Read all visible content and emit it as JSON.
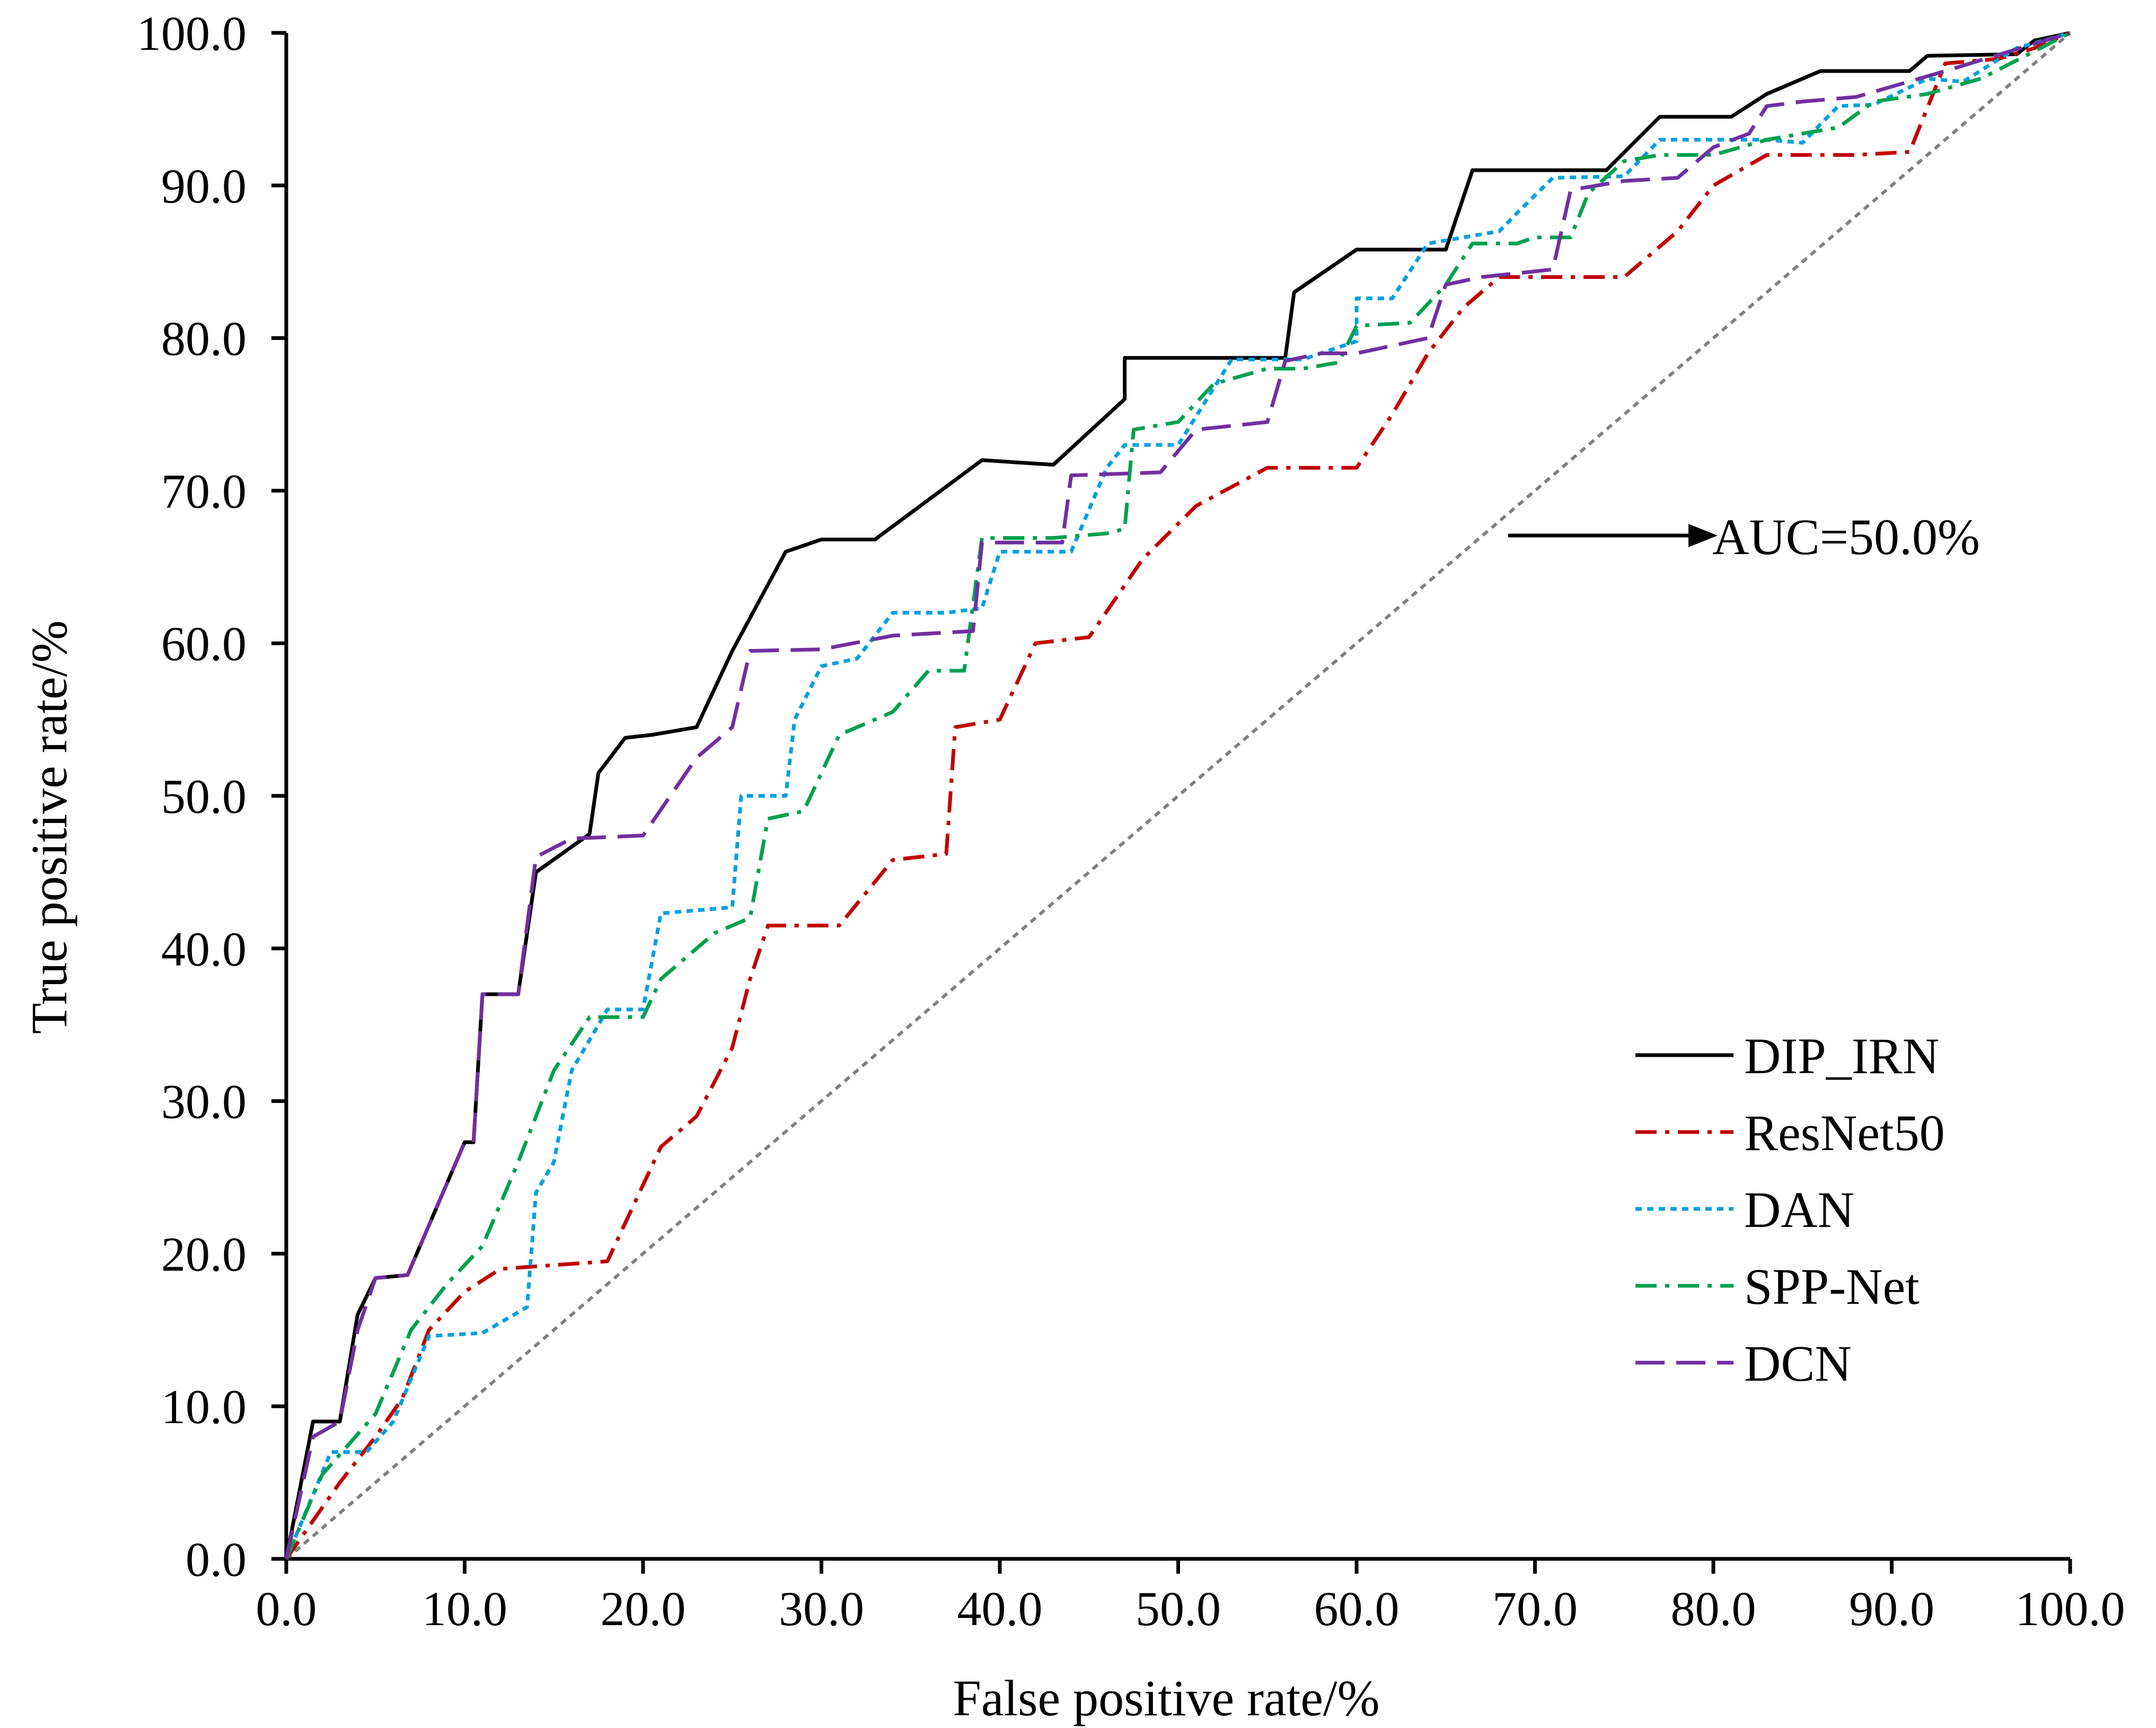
{
  "chart_data": {
    "type": "line",
    "title": "",
    "xlabel": "False positive rate/%",
    "ylabel": "True positive rate/%",
    "xlim": [
      0,
      100
    ],
    "ylim": [
      0,
      100
    ],
    "xticks": [
      "0.0",
      "10.0",
      "20.0",
      "30.0",
      "40.0",
      "50.0",
      "60.0",
      "70.0",
      "80.0",
      "90.0",
      "100.0"
    ],
    "yticks": [
      "0.0",
      "10.0",
      "20.0",
      "30.0",
      "40.0",
      "50.0",
      "60.0",
      "70.0",
      "80.0",
      "90.0",
      "100.0"
    ],
    "grid": false,
    "legend_position": "bottom-right",
    "annotation": "AUC=50.0%",
    "series": [
      {
        "name": "DIP_IRN",
        "color": "#000000",
        "dash": "solid",
        "points": [
          [
            0,
            0
          ],
          [
            1.5,
            9
          ],
          [
            3,
            9
          ],
          [
            4,
            16
          ],
          [
            5,
            18.4
          ],
          [
            6.8,
            18.6
          ],
          [
            10,
            27.3
          ],
          [
            10.5,
            27.3
          ],
          [
            11,
            37
          ],
          [
            13,
            37
          ],
          [
            14,
            45
          ],
          [
            17,
            47.5
          ],
          [
            17.5,
            51.5
          ],
          [
            19,
            53.8
          ],
          [
            20.5,
            54
          ],
          [
            23,
            54.5
          ],
          [
            25,
            59.5
          ],
          [
            28,
            66
          ],
          [
            30,
            66.8
          ],
          [
            33,
            66.8
          ],
          [
            39,
            72
          ],
          [
            43,
            71.7
          ],
          [
            47,
            76
          ],
          [
            47,
            78.7
          ],
          [
            56,
            78.7
          ],
          [
            56.5,
            83
          ],
          [
            60,
            85.8
          ],
          [
            64,
            85.8
          ],
          [
            65,
            85.8
          ],
          [
            66.5,
            91
          ],
          [
            74,
            91
          ],
          [
            77,
            94.5
          ],
          [
            81,
            94.5
          ],
          [
            83,
            96
          ],
          [
            86,
            97.5
          ],
          [
            91,
            97.5
          ],
          [
            92,
            98.5
          ],
          [
            97,
            98.6
          ],
          [
            98,
            99.5
          ],
          [
            100,
            100
          ]
        ]
      },
      {
        "name": "ResNet50",
        "color": "#c00000",
        "dash": "dashdot",
        "points": [
          [
            0,
            0
          ],
          [
            3,
            5
          ],
          [
            5,
            8
          ],
          [
            6.5,
            10.5
          ],
          [
            8,
            15
          ],
          [
            10,
            17.5
          ],
          [
            12,
            19
          ],
          [
            18,
            19.5
          ],
          [
            21,
            27
          ],
          [
            23,
            29
          ],
          [
            25,
            33.5
          ],
          [
            26,
            38
          ],
          [
            27,
            41.5
          ],
          [
            31,
            41.5
          ],
          [
            34,
            45.8
          ],
          [
            37,
            46.2
          ],
          [
            37.5,
            54.5
          ],
          [
            40,
            55
          ],
          [
            42,
            60
          ],
          [
            45,
            60.4
          ],
          [
            48,
            65.5
          ],
          [
            51,
            69
          ],
          [
            55,
            71.5
          ],
          [
            60,
            71.5
          ],
          [
            62,
            75
          ],
          [
            64,
            79
          ],
          [
            66,
            82
          ],
          [
            68,
            84
          ],
          [
            75,
            84
          ],
          [
            78,
            87
          ],
          [
            80,
            90
          ],
          [
            83,
            92
          ],
          [
            88,
            92
          ],
          [
            91,
            92.2
          ],
          [
            93,
            98
          ],
          [
            96,
            98.3
          ],
          [
            98,
            99
          ],
          [
            100,
            100
          ]
        ]
      },
      {
        "name": "DAN",
        "color": "#00a0e0",
        "dash": "dotted",
        "points": [
          [
            0,
            0
          ],
          [
            2.5,
            7
          ],
          [
            4.5,
            7
          ],
          [
            6,
            9
          ],
          [
            8,
            14.6
          ],
          [
            11,
            14.8
          ],
          [
            13.5,
            16.5
          ],
          [
            14,
            24
          ],
          [
            15,
            26
          ],
          [
            16,
            32
          ],
          [
            18,
            36
          ],
          [
            20,
            36
          ],
          [
            21,
            42.3
          ],
          [
            25,
            42.7
          ],
          [
            25.5,
            50
          ],
          [
            28,
            50
          ],
          [
            28.5,
            55
          ],
          [
            30,
            58.5
          ],
          [
            32,
            59
          ],
          [
            34,
            62
          ],
          [
            37,
            62
          ],
          [
            39,
            62.3
          ],
          [
            40,
            66
          ],
          [
            44,
            66
          ],
          [
            46,
            71.5
          ],
          [
            47,
            73
          ],
          [
            50,
            73
          ],
          [
            53,
            78.6
          ],
          [
            57,
            78.6
          ],
          [
            60,
            79.8
          ],
          [
            60,
            82.6
          ],
          [
            62,
            82.6
          ],
          [
            64,
            86.2
          ],
          [
            68,
            87
          ],
          [
            69,
            88.2
          ],
          [
            71,
            90.5
          ],
          [
            75,
            90.6
          ],
          [
            77,
            93
          ],
          [
            83,
            93
          ],
          [
            85,
            92.8
          ],
          [
            87,
            95.2
          ],
          [
            89,
            95.3
          ],
          [
            92,
            97
          ],
          [
            94,
            96.8
          ],
          [
            97,
            99
          ],
          [
            100,
            100
          ]
        ]
      },
      {
        "name": "SPP-Net",
        "color": "#00a050",
        "dash": "dashdot",
        "points": [
          [
            0,
            0
          ],
          [
            2,
            5.5
          ],
          [
            3.5,
            7.5
          ],
          [
            5,
            9.5
          ],
          [
            7,
            15
          ],
          [
            9,
            18
          ],
          [
            11,
            20.5
          ],
          [
            13,
            26
          ],
          [
            15,
            32
          ],
          [
            17,
            35.5
          ],
          [
            20,
            35.5
          ],
          [
            21,
            38
          ],
          [
            24,
            41
          ],
          [
            26,
            42
          ],
          [
            27,
            48.5
          ],
          [
            29,
            49
          ],
          [
            31,
            54
          ],
          [
            34,
            55.5
          ],
          [
            36,
            58.2
          ],
          [
            38,
            58.2
          ],
          [
            39,
            66.9
          ],
          [
            43,
            66.9
          ],
          [
            46,
            67.2
          ],
          [
            47,
            67.5
          ],
          [
            47.5,
            74
          ],
          [
            50,
            74.5
          ],
          [
            52,
            77
          ],
          [
            55,
            78
          ],
          [
            57,
            78
          ],
          [
            59,
            78.4
          ],
          [
            60,
            80.8
          ],
          [
            63,
            81
          ],
          [
            65,
            83.5
          ],
          [
            66.5,
            86.2
          ],
          [
            69,
            86.2
          ],
          [
            70,
            86.6
          ],
          [
            72,
            86.6
          ],
          [
            73,
            89.5
          ],
          [
            75,
            91.6
          ],
          [
            77,
            92
          ],
          [
            80,
            92
          ],
          [
            83,
            93
          ],
          [
            87,
            93.8
          ],
          [
            89,
            95.5
          ],
          [
            92,
            96
          ],
          [
            95,
            97
          ],
          [
            100,
            100
          ]
        ]
      },
      {
        "name": "DCN",
        "color": "#7030a0",
        "dash": "dashed",
        "points": [
          [
            0,
            0
          ],
          [
            1.5,
            8
          ],
          [
            3,
            9
          ],
          [
            4,
            15
          ],
          [
            5,
            18.4
          ],
          [
            6.8,
            18.6
          ],
          [
            10,
            27.3
          ],
          [
            10.5,
            27.3
          ],
          [
            11,
            37
          ],
          [
            13,
            37
          ],
          [
            14,
            46
          ],
          [
            16,
            47.2
          ],
          [
            20,
            47.4
          ],
          [
            23,
            52.5
          ],
          [
            25,
            54.5
          ],
          [
            26,
            59.5
          ],
          [
            30,
            59.6
          ],
          [
            34,
            60.5
          ],
          [
            38.5,
            60.8
          ],
          [
            39,
            66.6
          ],
          [
            43.5,
            66.6
          ],
          [
            44,
            71
          ],
          [
            49,
            71.2
          ],
          [
            51,
            74
          ],
          [
            55,
            74.5
          ],
          [
            56,
            78.5
          ],
          [
            58,
            79
          ],
          [
            60,
            79
          ],
          [
            64,
            80
          ],
          [
            65,
            83.5
          ],
          [
            67,
            84
          ],
          [
            71,
            84.5
          ],
          [
            72,
            89.7
          ],
          [
            75,
            90.3
          ],
          [
            78,
            90.5
          ],
          [
            80,
            92.5
          ],
          [
            82,
            93.4
          ],
          [
            83,
            95.2
          ],
          [
            85,
            95.5
          ],
          [
            88,
            95.8
          ],
          [
            93,
            97.5
          ],
          [
            100,
            100
          ]
        ]
      },
      {
        "name": "diagonal",
        "color": "#808080",
        "dash": "dotted",
        "points": [
          [
            0,
            0
          ],
          [
            100,
            100
          ]
        ]
      }
    ]
  }
}
